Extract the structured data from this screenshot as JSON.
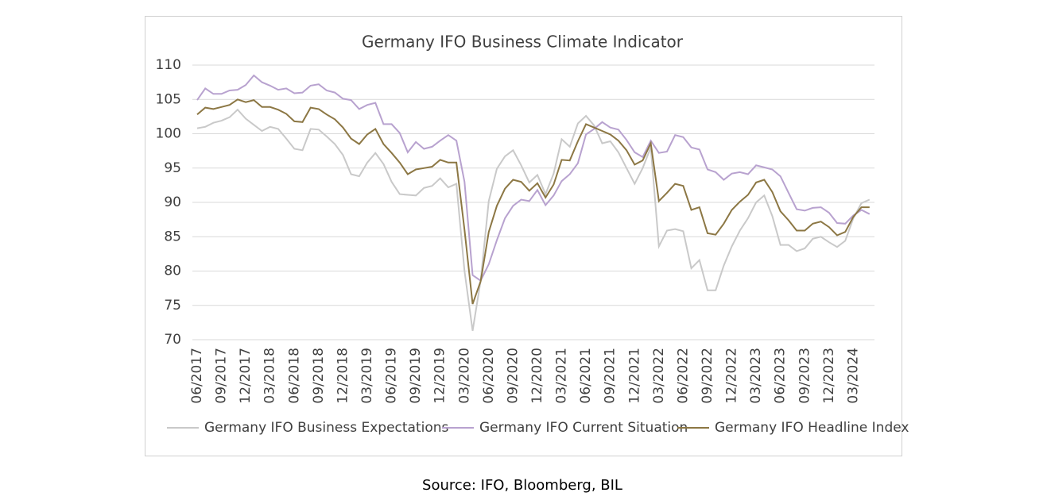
{
  "chart_data": {
    "type": "line",
    "title": "Germany IFO Business Climate Indicator",
    "categories": [
      "06/2017",
      null,
      null,
      "09/2017",
      null,
      null,
      "12/2017",
      null,
      null,
      "03/2018",
      null,
      null,
      "06/2018",
      null,
      null,
      "09/2018",
      null,
      null,
      "12/2018",
      null,
      null,
      "03/2019",
      null,
      null,
      "06/2019",
      null,
      null,
      "09/2019",
      null,
      null,
      "12/2019",
      null,
      null,
      "03/2020",
      null,
      null,
      "06/2020",
      null,
      null,
      "09/2020",
      null,
      null,
      "12/2020",
      null,
      null,
      "03/2021",
      null,
      null,
      "06/2021",
      null,
      null,
      "09/2021",
      null,
      null,
      "12/2021",
      null,
      null,
      "03/2022",
      null,
      null,
      "06/2022",
      null,
      null,
      "09/2022",
      null,
      null,
      "12/2022",
      null,
      null,
      "03/2023",
      null,
      null,
      "06/2023",
      null,
      null,
      "09/2023",
      null,
      null,
      "12/2023",
      null,
      null,
      "03/2024",
      null,
      null
    ],
    "series": [
      {
        "name": "Germany IFO Business Expectations",
        "color": "#c9c9c9",
        "values": [
          100.8,
          101.0,
          101.6,
          101.9,
          102.4,
          103.5,
          102.2,
          101.3,
          100.4,
          101.0,
          100.7,
          99.3,
          97.8,
          97.6,
          100.7,
          100.6,
          99.6,
          98.5,
          96.9,
          94.1,
          93.8,
          95.8,
          97.2,
          95.6,
          93.0,
          91.2,
          91.1,
          91.0,
          92.1,
          92.4,
          93.5,
          92.2,
          92.7,
          80.0,
          71.3,
          78.6,
          90.2,
          94.9,
          96.7,
          97.6,
          95.4,
          92.9,
          94.0,
          91.2,
          94.2,
          99.2,
          98.1,
          101.5,
          102.6,
          101.2,
          98.6,
          98.9,
          97.3,
          95.0,
          92.7,
          95.0,
          98.0,
          83.6,
          85.9,
          86.1,
          85.8,
          80.4,
          81.6,
          77.2,
          77.2,
          80.8,
          83.6,
          85.9,
          87.7,
          90.0,
          91.0,
          88.0,
          83.8,
          83.8,
          82.9,
          83.3,
          84.7,
          85.0,
          84.2,
          83.5,
          84.4,
          87.7,
          89.9,
          90.4
        ]
      },
      {
        "name": "Germany IFO Current Situation",
        "color": "#b8a2cf",
        "values": [
          104.9,
          106.6,
          105.8,
          105.8,
          106.3,
          106.4,
          107.1,
          108.5,
          107.5,
          107.0,
          106.4,
          106.6,
          105.9,
          106.0,
          107.0,
          107.2,
          106.3,
          106.0,
          105.1,
          104.9,
          103.6,
          104.2,
          104.5,
          101.4,
          101.4,
          100.1,
          97.3,
          98.8,
          97.8,
          98.1,
          99.0,
          99.8,
          99.0,
          93.0,
          79.4,
          78.6,
          81.0,
          84.5,
          87.7,
          89.5,
          90.4,
          90.2,
          91.8,
          89.6,
          91.0,
          93.1,
          94.1,
          95.7,
          99.9,
          100.7,
          101.7,
          100.9,
          100.6,
          99.1,
          97.3,
          96.6,
          99.0,
          97.2,
          97.4,
          99.8,
          99.5,
          98.0,
          97.7,
          94.8,
          94.4,
          93.3,
          94.2,
          94.4,
          94.1,
          95.4,
          95.1,
          94.8,
          93.8,
          91.4,
          89.0,
          88.8,
          89.2,
          89.3,
          88.5,
          87.0,
          86.9,
          88.1,
          88.9,
          88.3
        ]
      },
      {
        "name": "Germany IFO Headline Index",
        "color": "#8c7744",
        "values": [
          102.8,
          103.8,
          103.6,
          103.9,
          104.2,
          105.0,
          104.6,
          104.9,
          103.9,
          103.9,
          103.5,
          102.9,
          101.8,
          101.7,
          103.8,
          103.6,
          102.8,
          102.1,
          100.9,
          99.3,
          98.5,
          99.9,
          100.7,
          98.5,
          97.2,
          95.8,
          94.1,
          94.8,
          95.0,
          95.2,
          96.2,
          95.8,
          95.8,
          86.0,
          75.2,
          78.5,
          85.7,
          89.5,
          92.0,
          93.3,
          93.0,
          91.7,
          92.8,
          90.7,
          92.6,
          96.2,
          96.1,
          98.9,
          101.4,
          100.9,
          100.4,
          99.9,
          99.0,
          97.6,
          95.5,
          96.1,
          98.6,
          90.2,
          91.4,
          92.7,
          92.4,
          88.9,
          89.3,
          85.5,
          85.3,
          86.9,
          88.9,
          90.1,
          91.1,
          92.9,
          93.3,
          91.5,
          88.7,
          87.4,
          85.9,
          85.9,
          86.9,
          87.2,
          86.4,
          85.2,
          85.7,
          87.9,
          89.3,
          89.3
        ]
      }
    ],
    "ylim": [
      70,
      110
    ],
    "yticks": [
      70,
      75,
      80,
      85,
      90,
      95,
      100,
      105,
      110
    ],
    "grid": true,
    "legend": "bottom",
    "source": "Source: IFO, Bloomberg, BIL"
  }
}
